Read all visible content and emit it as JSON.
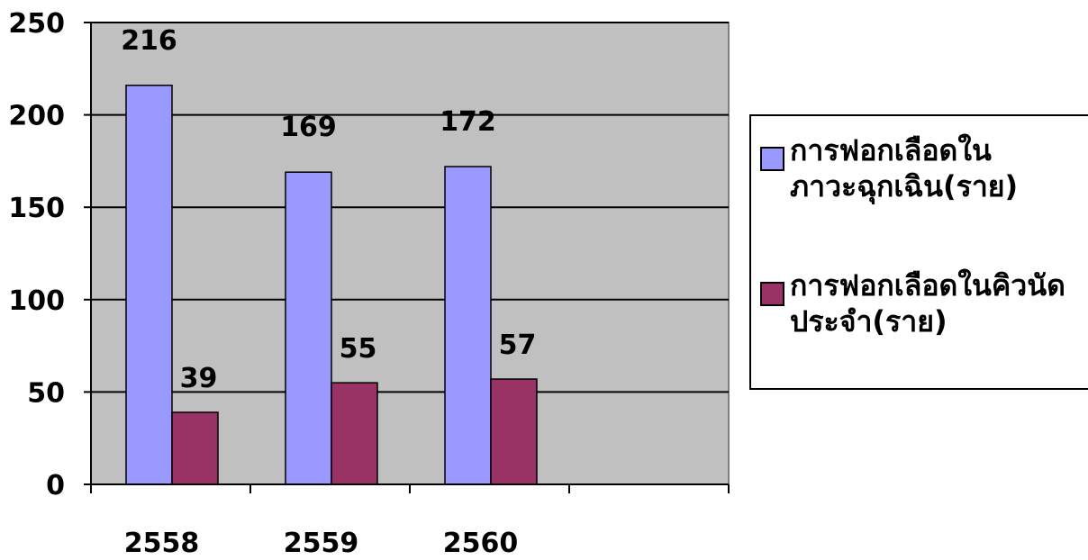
{
  "chart_data": {
    "type": "bar",
    "categories": [
      "2558",
      "2559",
      "2560"
    ],
    "series": [
      {
        "name": "การฟอกเลือดในภาวะฉุกเฉิน(ราย)",
        "color": "#9999ff",
        "values": [
          216,
          169,
          172
        ]
      },
      {
        "name": "การฟอกเลือดในคิวนัดประจำ(ราย)",
        "color": "#993366",
        "values": [
          39,
          55,
          57
        ]
      }
    ],
    "yticks": [
      "0",
      "50",
      "100",
      "150",
      "200",
      "250"
    ],
    "ylim": [
      0,
      250
    ],
    "grid": true,
    "plot_background": "#c0c0c0",
    "legend_position": "right"
  }
}
